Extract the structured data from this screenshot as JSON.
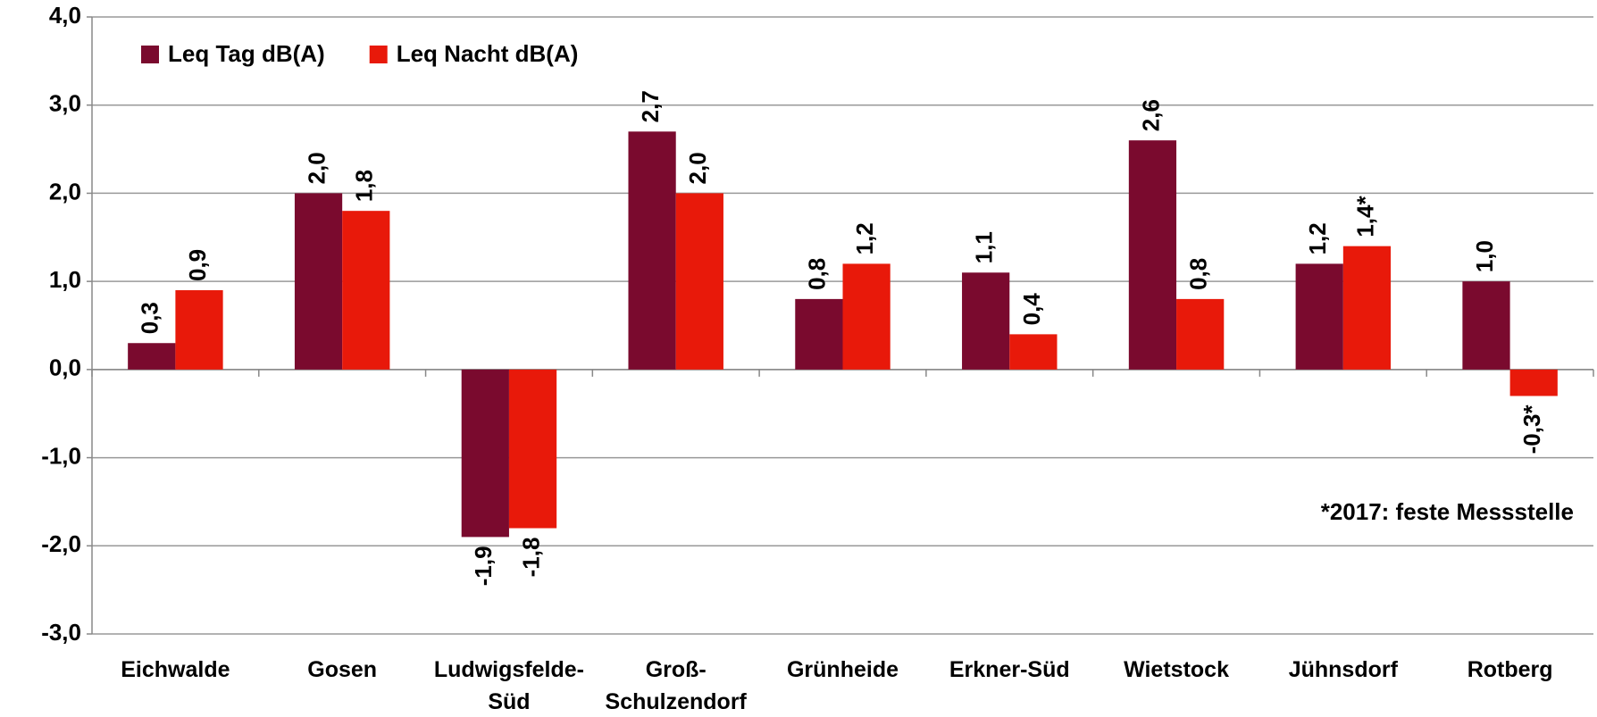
{
  "chart_data": {
    "type": "bar",
    "categories": [
      "Eichwalde",
      "Gosen",
      "Ludwigsfelde-Süd",
      "Groß-Schulzendorf",
      "Grünheide",
      "Erkner-Süd",
      "Wietstock",
      "Jühnsdorf",
      "Rotberg"
    ],
    "series": [
      {
        "name": "Leq Tag dB(A)",
        "color": "#7a0a2e",
        "values": [
          0.3,
          2.0,
          -1.9,
          2.7,
          0.8,
          1.1,
          2.6,
          1.2,
          1.0
        ],
        "value_labels": [
          "0,3",
          "2,0",
          "-1,9",
          "2,7",
          "0,8",
          "1,1",
          "2,6",
          "1,2",
          "1,0"
        ]
      },
      {
        "name": "Leq Nacht dB(A)",
        "color": "#e8190a",
        "values": [
          0.9,
          1.8,
          -1.8,
          2.0,
          1.2,
          0.4,
          0.8,
          1.4,
          -0.3
        ],
        "value_labels": [
          "0,9",
          "1,8",
          "-1,8",
          "2,0",
          "1,2",
          "0,4",
          "0,8",
          "1,4*",
          "-0,3*"
        ]
      }
    ],
    "annotation": "*2017: feste Messstelle",
    "ylim": [
      -3,
      4
    ],
    "yticks": [
      {
        "value": -3,
        "label": "-3,0"
      },
      {
        "value": -2,
        "label": "-2,0"
      },
      {
        "value": -1,
        "label": "-1,0"
      },
      {
        "value": 0,
        "label": "0,0"
      },
      {
        "value": 1,
        "label": "1,0"
      },
      {
        "value": 2,
        "label": "2,0"
      },
      {
        "value": 3,
        "label": "3,0"
      },
      {
        "value": 4,
        "label": "4,0"
      }
    ],
    "grid": true,
    "legend": "top-left"
  }
}
